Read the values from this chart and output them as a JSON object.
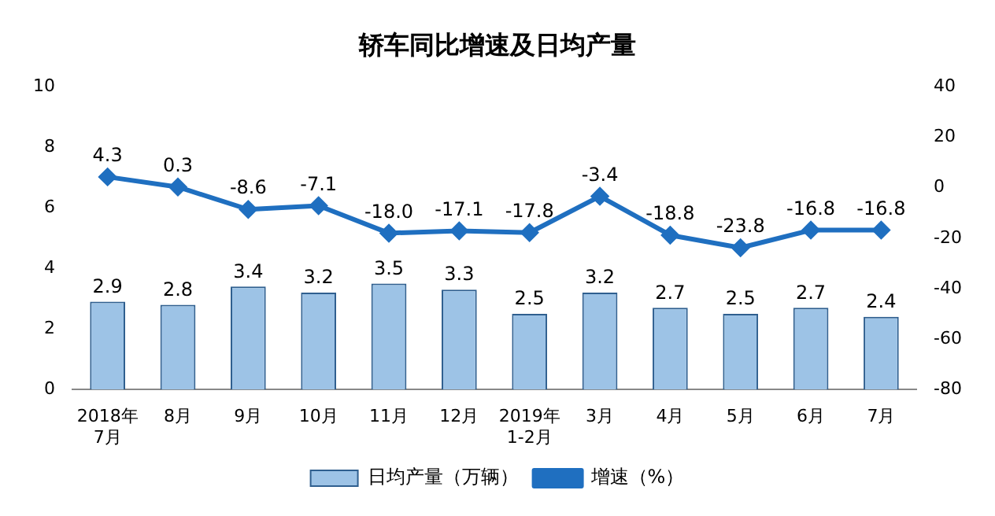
{
  "chart_data": {
    "type": "bar",
    "title": "轿车同比增速及日均产量",
    "categories": [
      "2018年\n7月",
      "8月",
      "9月",
      "10月",
      "11月",
      "12月",
      "2019年\n1-2月",
      "3月",
      "4月",
      "5月",
      "6月",
      "7月"
    ],
    "series": [
      {
        "name": "日均产量（万辆）",
        "color": "#9dc3e6",
        "values": [
          2.9,
          2.8,
          3.4,
          3.2,
          3.5,
          3.3,
          2.5,
          3.2,
          2.7,
          2.5,
          2.7,
          2.4
        ],
        "value_labels": [
          "2.9",
          "2.8",
          "3.4",
          "3.2",
          "3.5",
          "3.3",
          "2.5",
          "3.2",
          "2.7",
          "2.5",
          "2.7",
          "2.4"
        ]
      },
      {
        "name": "增速（%）",
        "type": "line",
        "axis": "y2",
        "color": "#1f6fc0",
        "values": [
          4.3,
          0.3,
          -8.6,
          -7.1,
          -18.0,
          -17.1,
          -17.8,
          -3.4,
          -18.8,
          -23.8,
          -16.8,
          -16.8
        ],
        "value_labels": [
          "4.3",
          "0.3",
          "-8.6",
          "-7.1",
          "-18.0",
          "-17.1",
          "-17.8",
          "-3.4",
          "-18.8",
          "-23.8",
          "-16.8",
          "-16.8"
        ]
      }
    ],
    "ylim": [
      0,
      10
    ],
    "yticks": [
      0,
      2,
      4,
      6,
      8,
      10
    ],
    "y2lim": [
      -80,
      40
    ],
    "y2ticks": [
      -80,
      -60,
      -40,
      -20,
      0,
      20,
      40
    ],
    "grid": false,
    "legend": "bottom",
    "marker": "diamond",
    "line_style": "solid"
  }
}
